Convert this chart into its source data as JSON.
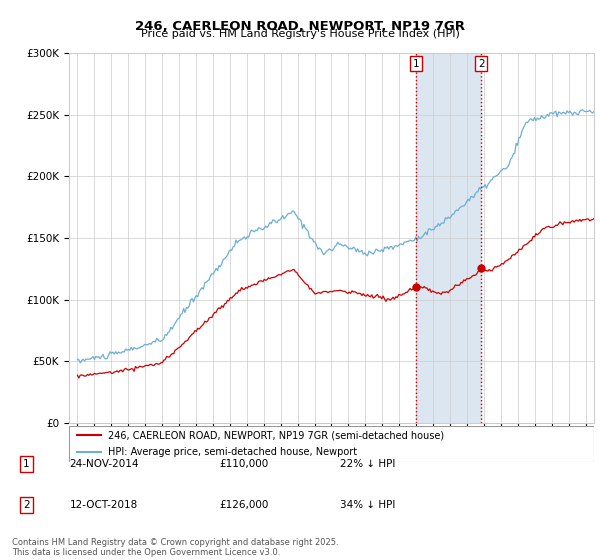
{
  "title_line1": "246, CAERLEON ROAD, NEWPORT, NP19 7GR",
  "title_line2": "Price paid vs. HM Land Registry's House Price Index (HPI)",
  "hpi_color": "#6baed6",
  "price_color": "#cc0000",
  "shading_color": "#dce6f1",
  "vline_color": "#cc0000",
  "sale1_date_num": 2015.0,
  "sale2_date_num": 2018.85,
  "ylim": [
    0,
    300000
  ],
  "xlim": [
    1994.5,
    2025.5
  ],
  "yticks": [
    0,
    50000,
    100000,
    150000,
    200000,
    250000,
    300000
  ],
  "ytick_labels": [
    "£0",
    "£50K",
    "£100K",
    "£150K",
    "£200K",
    "£250K",
    "£300K"
  ],
  "legend_label1": "246, CAERLEON ROAD, NEWPORT, NP19 7GR (semi-detached house)",
  "legend_label2": "HPI: Average price, semi-detached house, Newport",
  "note1_num": "1",
  "note1_date": "24-NOV-2014",
  "note1_price": "£110,000",
  "note1_hpi": "22% ↓ HPI",
  "note2_num": "2",
  "note2_date": "12-OCT-2018",
  "note2_price": "£126,000",
  "note2_hpi": "34% ↓ HPI",
  "footer": "Contains HM Land Registry data © Crown copyright and database right 2025.\nThis data is licensed under the Open Government Licence v3.0."
}
